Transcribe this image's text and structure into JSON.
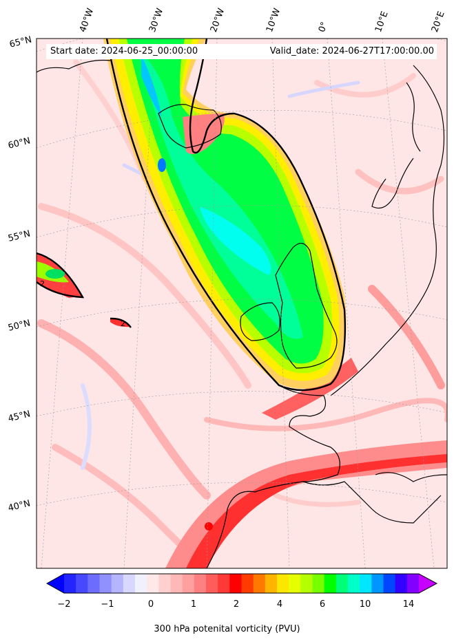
{
  "header": {
    "start_date": "Start date: 2024-06-25_00:00:00",
    "valid_date": "Valid_date: 2024-06-27T17:00:00.00"
  },
  "map": {
    "lon_labels": [
      "40°W",
      "30°W",
      "20°W",
      "10°W",
      "0°",
      "10°E",
      "20°E"
    ],
    "lat_labels": [
      "65°N",
      "60°N",
      "55°N",
      "50°N",
      "45°N",
      "40°N"
    ],
    "contour_labels": [
      "2",
      "2"
    ]
  },
  "colorbar": {
    "tick_labels": [
      "−2",
      "−1",
      "0",
      "1",
      "2",
      "4",
      "6",
      "10",
      "14"
    ],
    "label": "300 hPa potenital vorticity (PVU)",
    "colors": [
      "#0000ff",
      "#2424ff",
      "#4848ff",
      "#6c6cff",
      "#9090ff",
      "#b4b4ff",
      "#d8d8ff",
      "#f0f0ff",
      "#ffe8e8",
      "#ffd0d0",
      "#ffb8b8",
      "#ffa0a0",
      "#ff8080",
      "#ff5c5c",
      "#ff3838",
      "#ff0000",
      "#ff3c00",
      "#ff7800",
      "#ffb400",
      "#ffe600",
      "#e6ff00",
      "#b4ff00",
      "#78ff00",
      "#00ff00",
      "#00ff78",
      "#00ffc8",
      "#00e6ff",
      "#0096ff",
      "#0046ff",
      "#3200ff",
      "#8200ff",
      "#c800ff"
    ]
  }
}
